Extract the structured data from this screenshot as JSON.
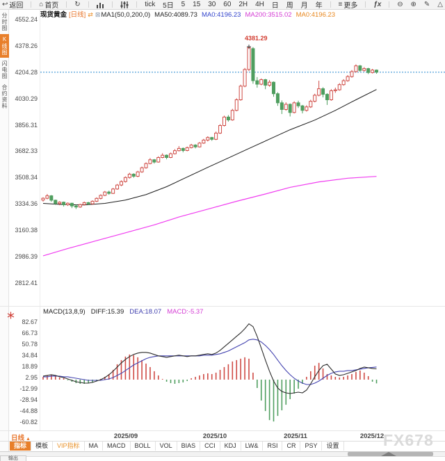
{
  "toolbar": {
    "items": [
      {
        "id": "back",
        "icon": "back-arrow",
        "label": "返回"
      },
      {
        "id": "home",
        "icon": "home",
        "label": "首页"
      },
      {
        "id": "refresh",
        "icon": "refresh",
        "label": ""
      },
      {
        "id": "chart-style",
        "icon": "bar-chart",
        "label": ""
      },
      {
        "id": "indicator-tune",
        "icon": "sliders",
        "label": ""
      },
      {
        "id": "period-tick",
        "label": "tick"
      },
      {
        "id": "period-5d",
        "label": "5日"
      },
      {
        "id": "period-5",
        "label": "5"
      },
      {
        "id": "period-15",
        "label": "15"
      },
      {
        "id": "period-30",
        "label": "30"
      },
      {
        "id": "period-60",
        "label": "60"
      },
      {
        "id": "period-2h",
        "label": "2H"
      },
      {
        "id": "period-4h",
        "label": "4H"
      },
      {
        "id": "period-day",
        "label": "日"
      },
      {
        "id": "period-week",
        "label": "周"
      },
      {
        "id": "period-month",
        "label": "月"
      },
      {
        "id": "period-year",
        "label": "年"
      },
      {
        "id": "more",
        "icon": "more-lines",
        "label": "更多"
      },
      {
        "id": "fx",
        "icon": "fx",
        "label": ""
      },
      {
        "id": "zoom-out",
        "icon": "zoom-out",
        "label": ""
      },
      {
        "id": "zoom-in",
        "icon": "zoom-in",
        "label": ""
      },
      {
        "id": "draw",
        "icon": "pencil",
        "label": ""
      },
      {
        "id": "shapes",
        "icon": "triangle",
        "label": ""
      }
    ]
  },
  "sidebar": {
    "items": [
      {
        "label": "分时图",
        "active": false
      },
      {
        "label": "K线图",
        "active": true
      },
      {
        "label": "闪电图",
        "active": false
      },
      {
        "label": "合约资料",
        "active": false
      }
    ]
  },
  "quote_header": {
    "symbol": "现货黄金",
    "period_tag": "[日线]",
    "swap_icon": "⇄",
    "overlay_icon": "⊠",
    "ma_settings": "MA1(50,0,200,0)",
    "ma_values": [
      {
        "label": "MA50:4089.73",
        "color": "#222222"
      },
      {
        "label": "MA0:4196.23",
        "color": "#3344cc"
      },
      {
        "label": "MA200:3515.02",
        "color": "#d43cd4"
      },
      {
        "label": "MA0:4196.23",
        "color": "#e8871e"
      }
    ]
  },
  "colors": {
    "up_red": "#cf4a44",
    "down_green": "#4f9e5f",
    "ma50": "#1a1a1a",
    "ma200": "#f03cf0",
    "price_dotted": "#5fa8dc",
    "diff_line": "#2b2b2b",
    "dea_line": "#4343b0",
    "accent_orange": "#e87f2a",
    "peak_red": "#d23b2f"
  },
  "chart_data": [
    {
      "type": "candlestick",
      "title": "现货黄金 日线",
      "y_ticks": [
        4552.24,
        4378.26,
        4204.28,
        4030.29,
        3856.31,
        3682.33,
        3508.34,
        3334.36,
        3160.38,
        2986.39,
        2812.41
      ],
      "x_labels": [
        "2025/09",
        "2025/10",
        "2025/11",
        "2025/12"
      ],
      "current_price": 4204.28,
      "peak_annotation": "4381.29",
      "peak_value": 4381.29,
      "candles": [
        [
          3360,
          3378,
          3350,
          3372
        ],
        [
          3372,
          3400,
          3365,
          3388
        ],
        [
          3388,
          3393,
          3349,
          3359
        ],
        [
          3359,
          3363,
          3328,
          3337
        ],
        [
          3337,
          3352,
          3326,
          3346
        ],
        [
          3346,
          3350,
          3317,
          3329
        ],
        [
          3329,
          3344,
          3321,
          3339
        ],
        [
          3339,
          3342,
          3307,
          3321
        ],
        [
          3321,
          3330,
          3301,
          3314
        ],
        [
          3314,
          3336,
          3309,
          3330
        ],
        [
          3330,
          3350,
          3324,
          3343
        ],
        [
          3343,
          3348,
          3327,
          3335
        ],
        [
          3335,
          3358,
          3330,
          3352
        ],
        [
          3352,
          3378,
          3347,
          3371
        ],
        [
          3371,
          3398,
          3364,
          3391
        ],
        [
          3391,
          3420,
          3386,
          3413
        ],
        [
          3413,
          3422,
          3395,
          3404
        ],
        [
          3404,
          3440,
          3400,
          3433
        ],
        [
          3433,
          3466,
          3428,
          3459
        ],
        [
          3459,
          3490,
          3452,
          3482
        ],
        [
          3482,
          3516,
          3476,
          3509
        ],
        [
          3509,
          3540,
          3502,
          3531
        ],
        [
          3531,
          3537,
          3507,
          3517
        ],
        [
          3517,
          3553,
          3511,
          3546
        ],
        [
          3546,
          3581,
          3540,
          3573
        ],
        [
          3573,
          3609,
          3567,
          3601
        ],
        [
          3601,
          3637,
          3596,
          3626
        ],
        [
          3626,
          3631,
          3601,
          3611
        ],
        [
          3611,
          3649,
          3607,
          3641
        ],
        [
          3641,
          3669,
          3636,
          3656
        ],
        [
          3656,
          3661,
          3629,
          3641
        ],
        [
          3641,
          3673,
          3637,
          3666
        ],
        [
          3666,
          3696,
          3661,
          3686
        ],
        [
          3686,
          3716,
          3681,
          3701
        ],
        [
          3701,
          3707,
          3675,
          3687
        ],
        [
          3687,
          3713,
          3682,
          3706
        ],
        [
          3706,
          3731,
          3701,
          3723
        ],
        [
          3723,
          3729,
          3701,
          3711
        ],
        [
          3711,
          3743,
          3707,
          3736
        ],
        [
          3736,
          3764,
          3731,
          3756
        ],
        [
          3756,
          3781,
          3747,
          3773
        ],
        [
          3773,
          3777,
          3751,
          3761
        ],
        [
          3761,
          3812,
          3756,
          3802
        ],
        [
          3802,
          3861,
          3797,
          3852
        ],
        [
          3852,
          3917,
          3846,
          3908
        ],
        [
          3908,
          3921,
          3878,
          3889
        ],
        [
          3889,
          3962,
          3884,
          3952
        ],
        [
          3952,
          4032,
          3946,
          4022
        ],
        [
          4022,
          4122,
          4016,
          4112
        ],
        [
          4112,
          4232,
          4105,
          4222
        ],
        [
          4222,
          4381.29,
          4212,
          4366
        ],
        [
          4360,
          4370,
          4128,
          4148
        ],
        [
          4148,
          4172,
          4102,
          4125
        ],
        [
          4125,
          4163,
          4118,
          4155
        ],
        [
          4155,
          4160,
          4092,
          4118
        ],
        [
          4118,
          4152,
          4108,
          4138
        ],
        [
          4138,
          4143,
          4042,
          4062
        ],
        [
          4062,
          4072,
          3982,
          4002
        ],
        [
          4002,
          4018,
          3928,
          3958
        ],
        [
          3958,
          4005,
          3950,
          3992
        ],
        [
          3992,
          3998,
          3912,
          3938
        ],
        [
          3938,
          4012,
          3932,
          4002
        ],
        [
          4002,
          4016,
          3968,
          3982
        ],
        [
          3982,
          3988,
          3932,
          3952
        ],
        [
          3952,
          3986,
          3944,
          3975
        ],
        [
          3975,
          4022,
          3968,
          4012
        ],
        [
          4012,
          4062,
          4005,
          4052
        ],
        [
          4052,
          4148,
          4045,
          4095
        ],
        [
          4095,
          4105,
          4038,
          4058
        ],
        [
          4058,
          4065,
          3988,
          4022
        ],
        [
          4022,
          4092,
          4016,
          4082
        ],
        [
          4082,
          4102,
          4068,
          4088
        ],
        [
          4088,
          4132,
          4082,
          4122
        ],
        [
          4122,
          4158,
          4115,
          4148
        ],
        [
          4148,
          4185,
          4141,
          4175
        ],
        [
          4175,
          4218,
          4168,
          4208
        ],
        [
          4208,
          4256,
          4202,
          4246
        ],
        [
          4246,
          4252,
          4206,
          4216
        ],
        [
          4216,
          4238,
          4208,
          4228
        ],
        [
          4228,
          4233,
          4192,
          4202
        ],
        [
          4202,
          4226,
          4196,
          4218
        ],
        [
          4218,
          4222,
          4194,
          4204.28
        ]
      ],
      "ma50": [
        [
          0,
          3338
        ],
        [
          5,
          3330
        ],
        [
          10,
          3328
        ],
        [
          15,
          3338
        ],
        [
          20,
          3360
        ],
        [
          25,
          3396
        ],
        [
          30,
          3448
        ],
        [
          35,
          3512
        ],
        [
          40,
          3576
        ],
        [
          45,
          3638
        ],
        [
          50,
          3700
        ],
        [
          55,
          3762
        ],
        [
          60,
          3824
        ],
        [
          66,
          3888
        ],
        [
          71,
          3952
        ],
        [
          76,
          4022
        ],
        [
          81,
          4090
        ]
      ],
      "ma200": [
        [
          0,
          2992
        ],
        [
          6,
          3040
        ],
        [
          13,
          3092
        ],
        [
          20,
          3144
        ],
        [
          27,
          3196
        ],
        [
          33,
          3248
        ],
        [
          40,
          3300
        ],
        [
          47,
          3352
        ],
        [
          54,
          3400
        ],
        [
          60,
          3444
        ],
        [
          67,
          3480
        ],
        [
          74,
          3504
        ],
        [
          81,
          3516
        ]
      ]
    },
    {
      "type": "macd",
      "header": {
        "name": "MACD(13,8,9)",
        "diff": "DIFF:15.39",
        "dea": "DEA:18.07",
        "macd": "MACD:-5.37"
      },
      "y_ticks": [
        82.67,
        66.73,
        50.78,
        34.84,
        18.89,
        2.95,
        -12.99,
        -28.94,
        -44.88,
        -60.82
      ],
      "histogram": [
        4,
        6,
        7,
        5,
        3,
        2,
        -1,
        -3,
        -5,
        -6,
        -6,
        -5,
        -4,
        -2,
        1,
        4,
        8,
        14,
        22,
        28,
        33,
        36,
        35,
        32,
        28,
        23,
        18,
        12,
        6,
        1,
        -3,
        -5,
        -6,
        -5,
        -4,
        -2,
        2,
        4,
        6,
        8,
        9,
        8,
        10,
        14,
        18,
        22,
        26,
        28,
        30,
        32,
        30,
        10,
        -12,
        -30,
        -45,
        -58,
        -60,
        -52,
        -44,
        -36,
        -28,
        -20,
        -13,
        -6,
        4,
        12,
        20,
        24,
        16,
        8,
        6,
        4,
        3,
        4,
        6,
        8,
        11,
        13,
        10,
        5,
        -3,
        -5.37
      ],
      "diff": [
        5,
        6,
        7,
        6,
        4,
        3,
        1,
        -1,
        -3,
        -4,
        -5,
        -5,
        -4,
        -2,
        0,
        3,
        7,
        12,
        18,
        24,
        29,
        33,
        36,
        38,
        39,
        39,
        38,
        36,
        34,
        33,
        32,
        33,
        34,
        35,
        34,
        33,
        34,
        34,
        35,
        36,
        37,
        36,
        38,
        42,
        47,
        52,
        57,
        62,
        67,
        73,
        80,
        76,
        62,
        45,
        28,
        12,
        -2,
        -12,
        -17,
        -19,
        -20,
        -19,
        -18,
        -19,
        -15,
        -6,
        4,
        13,
        20,
        22,
        15,
        8,
        6,
        7,
        9,
        11,
        13,
        16,
        18,
        17,
        16,
        15.4
      ],
      "dea": [
        4,
        4,
        5,
        5,
        5,
        4,
        4,
        3,
        2,
        1,
        0,
        -1,
        -1,
        -1,
        -1,
        0,
        1,
        3,
        6,
        9,
        13,
        17,
        21,
        24,
        27,
        30,
        32,
        33,
        34,
        34,
        34,
        34,
        34,
        34,
        34,
        34,
        34,
        34,
        34,
        35,
        35,
        35,
        36,
        37,
        39,
        41,
        44,
        47,
        50,
        53,
        57,
        58,
        57,
        54,
        49,
        43,
        36,
        28,
        20,
        13,
        7,
        2,
        -2,
        -5,
        -7,
        -7,
        -5,
        -2,
        2,
        6,
        9,
        11,
        12,
        12,
        13,
        13,
        14,
        15,
        16,
        17,
        17.5,
        18.07
      ]
    }
  ],
  "footer": {
    "period_label": "日线",
    "tabs": [
      {
        "label": "指标",
        "active": true
      },
      {
        "label": "模板"
      },
      {
        "label": "VIP指标",
        "vip": true
      },
      {
        "label": "MA"
      },
      {
        "label": "MACD"
      },
      {
        "label": "BOLL"
      },
      {
        "label": "VOL"
      },
      {
        "label": "BIAS"
      },
      {
        "label": "CCI"
      },
      {
        "label": "KDJ"
      },
      {
        "label": "LW&"
      },
      {
        "label": "RSI"
      },
      {
        "label": "CR"
      },
      {
        "label": "PSY"
      },
      {
        "label": "设置"
      }
    ],
    "output_tab": "输出",
    "watermark": "FX678"
  }
}
